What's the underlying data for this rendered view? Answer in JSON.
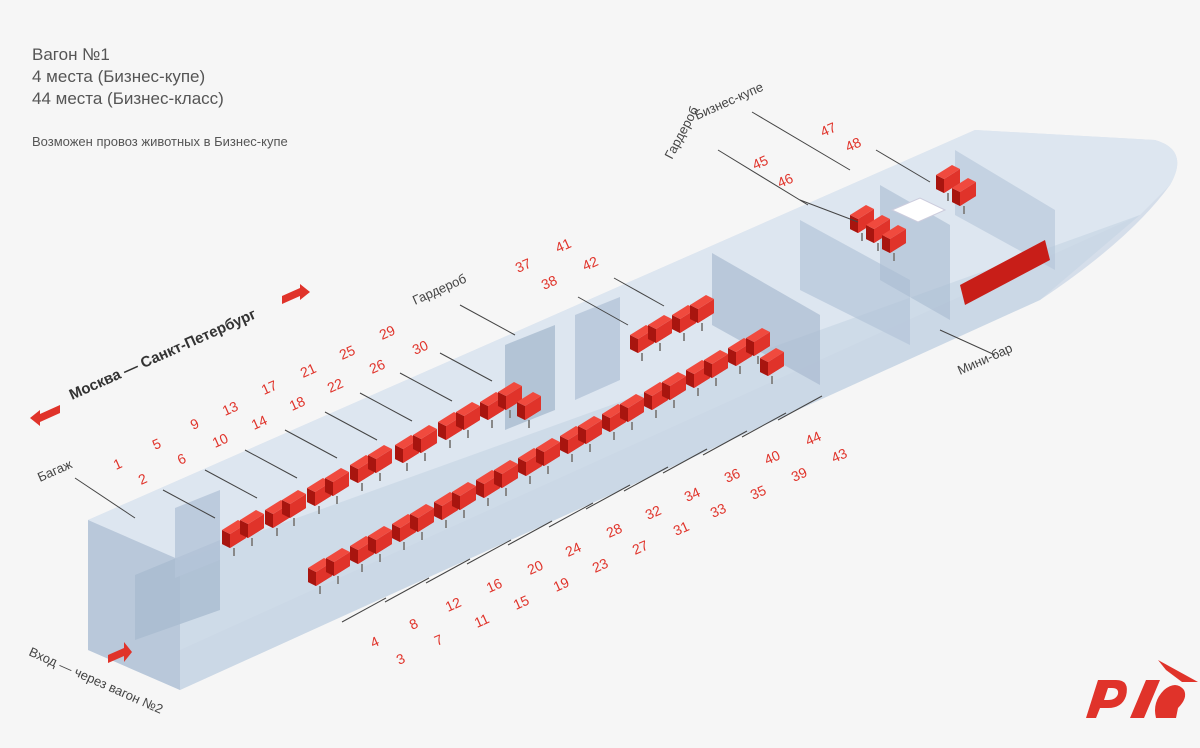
{
  "header": {
    "title": "Вагон №1",
    "line1": "4 места (Бизнес-купе)",
    "line2": "44 места (Бизнес-класс)",
    "note": "Возможен провоз животных в Бизнес-купе"
  },
  "route": "Москва — Санкт-Петербург",
  "entry": "Вход — через вагон №2",
  "labels": {
    "baggage": "Багаж",
    "wardrobe": "Гардероб",
    "wardrobe2": "Гардероб",
    "business_compartment": "Бизнес-купе",
    "minibar": "Мини-бар"
  },
  "seats_upper_top": [
    "1",
    "5",
    "9",
    "13",
    "17",
    "21",
    "25",
    "29",
    "37",
    "41"
  ],
  "seats_upper_bottom": [
    "2",
    "6",
    "10",
    "14",
    "18",
    "22",
    "26",
    "30",
    "38",
    "42"
  ],
  "seats_lower_top": [
    "4",
    "8",
    "12",
    "16",
    "20",
    "24",
    "28",
    "32",
    "34",
    "36",
    "40",
    "44"
  ],
  "seats_lower_bottom": [
    "3",
    "7",
    "11",
    "15",
    "19",
    "23",
    "27",
    "31",
    "33",
    "35",
    "39",
    "43"
  ],
  "seats_compartment": [
    "45",
    "46",
    "47",
    "48"
  ],
  "colors": {
    "accent": "#e0332a",
    "car_body": "#c9d6e6"
  }
}
